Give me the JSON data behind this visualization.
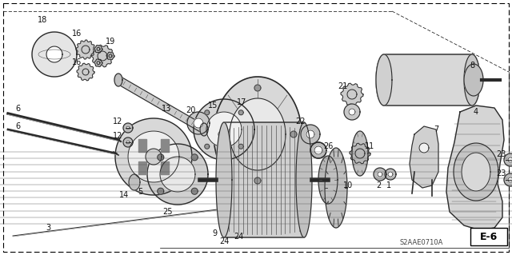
{
  "figsize": [
    6.4,
    3.19
  ],
  "dpi": 100,
  "background_color": "#ffffff",
  "watermark": "S2AAE0710A",
  "frame_label": "E-6",
  "border_color": "#000000"
}
